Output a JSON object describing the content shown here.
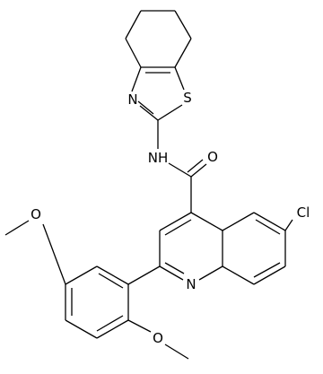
{
  "atoms": [
    {
      "label": "S"
    },
    {
      "label": "N"
    },
    {
      "label": "NH"
    },
    {
      "label": "O"
    },
    {
      "label": "Cl"
    },
    {
      "label": "N"
    },
    {
      "label": "O"
    },
    {
      "label": "O"
    }
  ]
}
